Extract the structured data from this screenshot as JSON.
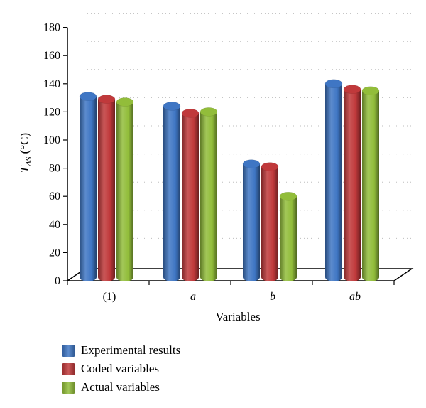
{
  "chart_data": {
    "type": "bar",
    "categories": [
      "(1)",
      "a",
      "b",
      "ab"
    ],
    "xlabel": "Variables",
    "ylabel_main": "T",
    "ylabel_sub": "ΔS",
    "ylabel_unit": " (°C)",
    "ylim": [
      0,
      180
    ],
    "yticks": [
      0,
      20,
      40,
      60,
      80,
      100,
      120,
      140,
      160,
      180
    ],
    "grid": true,
    "legend_position": "bottom-left",
    "series": [
      {
        "name": "Experimental results",
        "values": [
          131,
          124,
          83,
          140
        ],
        "color": "#3f76c4"
      },
      {
        "name": "Coded variables",
        "values": [
          129,
          119,
          81,
          136
        ],
        "color": "#c0393b"
      },
      {
        "name": "Actual variables",
        "values": [
          127,
          120,
          60,
          135
        ],
        "color": "#92bd3a"
      }
    ]
  }
}
